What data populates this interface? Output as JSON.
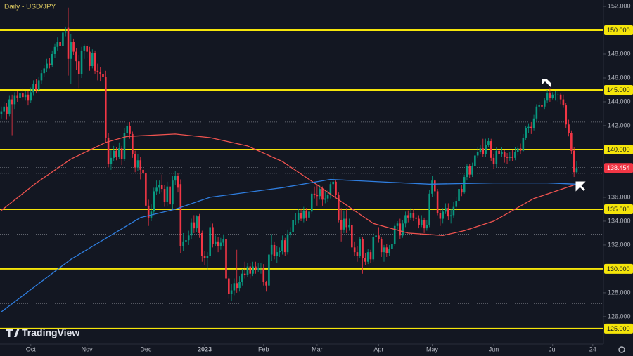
{
  "chart_data": {
    "type": "candlestick",
    "title": "Daily - USD/JPY",
    "watermark": "TradingView",
    "xlim": [
      -0.5,
      225
    ],
    "ylim": [
      123.7,
      152.53
    ],
    "xticks": [
      {
        "value": 11,
        "label": "Oct"
      },
      {
        "value": 32,
        "label": "Nov"
      },
      {
        "value": 54,
        "label": "Dec"
      },
      {
        "value": 76,
        "label": "2023"
      },
      {
        "value": 98,
        "label": "Feb"
      },
      {
        "value": 118,
        "label": "Mar"
      },
      {
        "value": 141,
        "label": "Apr"
      },
      {
        "value": 161,
        "label": "May"
      },
      {
        "value": 184,
        "label": "Jun"
      },
      {
        "value": 206,
        "label": "Jul"
      },
      {
        "value": 221,
        "label": "24"
      }
    ],
    "yticks": [
      {
        "value": 126,
        "label": "126.000"
      },
      {
        "value": 128,
        "label": "128.000"
      },
      {
        "value": 132,
        "label": "132.000"
      },
      {
        "value": 134,
        "label": "134.000"
      },
      {
        "value": 136,
        "label": "136.000"
      },
      {
        "value": 142,
        "label": "142.000"
      },
      {
        "value": 144,
        "label": "144.000"
      },
      {
        "value": 146,
        "label": "146.000"
      },
      {
        "value": 148,
        "label": "148.000"
      },
      {
        "value": 152,
        "label": "152.000"
      }
    ],
    "levels": [
      {
        "value": 150,
        "label": "150.000"
      },
      {
        "value": 145,
        "label": "145.000"
      },
      {
        "value": 140,
        "label": "140.000"
      },
      {
        "value": 135,
        "label": "135.000"
      },
      {
        "value": 130,
        "label": "130.000"
      },
      {
        "value": 125,
        "label": "125.000"
      }
    ],
    "level_color": "#f5e50a",
    "dotted_levels": [
      147.9,
      146.9,
      142.3,
      138.5,
      138.0,
      132.9,
      131.5,
      127.1
    ],
    "up_color": "#089981",
    "down_color": "#f23645",
    "ohlc": [
      [
        143.0,
        143.6,
        142.6,
        143.2
      ],
      [
        143.2,
        144.0,
        142.9,
        143.6
      ],
      [
        143.6,
        143.9,
        142.5,
        143.0
      ],
      [
        143.0,
        144.5,
        142.8,
        144.2
      ],
      [
        144.2,
        144.6,
        141.2,
        143.8
      ],
      [
        143.8,
        144.8,
        143.4,
        144.5
      ],
      [
        144.5,
        144.9,
        144.0,
        144.3
      ],
      [
        144.3,
        145.0,
        144.0,
        144.7
      ],
      [
        144.7,
        145.1,
        144.1,
        144.4
      ],
      [
        144.4,
        144.9,
        144.1,
        144.6
      ],
      [
        144.6,
        144.9,
        143.7,
        144.1
      ],
      [
        144.1,
        145.2,
        143.9,
        144.8
      ],
      [
        144.8,
        145.8,
        144.5,
        145.5
      ],
      [
        145.5,
        145.9,
        144.7,
        145.0
      ],
      [
        145.0,
        146.1,
        144.8,
        145.8
      ],
      [
        145.8,
        146.7,
        145.5,
        146.4
      ],
      [
        146.4,
        147.1,
        146.1,
        146.8
      ],
      [
        146.8,
        147.6,
        146.5,
        147.2
      ],
      [
        147.2,
        147.7,
        146.8,
        147.1
      ],
      [
        147.1,
        148.3,
        146.9,
        148.0
      ],
      [
        148.0,
        148.9,
        147.7,
        148.6
      ],
      [
        148.6,
        149.4,
        148.3,
        149.0
      ],
      [
        149.0,
        149.3,
        148.2,
        148.7
      ],
      [
        148.7,
        150.1,
        148.5,
        149.8
      ],
      [
        149.8,
        150.3,
        149.5,
        149.9
      ],
      [
        150.2,
        151.9,
        146.2,
        147.6
      ],
      [
        147.6,
        149.7,
        145.5,
        149.0
      ],
      [
        149.0,
        149.3,
        147.9,
        148.2
      ],
      [
        148.2,
        148.5,
        146.7,
        147.4
      ],
      [
        147.4,
        147.9,
        145.1,
        146.3
      ],
      [
        146.3,
        148.6,
        146.0,
        148.3
      ],
      [
        148.3,
        148.8,
        147.6,
        148.7
      ],
      [
        148.7,
        148.9,
        147.7,
        148.2
      ],
      [
        148.2,
        148.6,
        146.6,
        147.0
      ],
      [
        147.0,
        148.4,
        146.8,
        148.1
      ],
      [
        148.1,
        148.3,
        146.3,
        146.6
      ],
      [
        146.6,
        147.2,
        145.8,
        146.5
      ],
      [
        146.5,
        146.9,
        145.7,
        146.3
      ],
      [
        146.3,
        146.8,
        145.4,
        146.1
      ],
      [
        146.1,
        146.6,
        140.6,
        141.0
      ],
      [
        141.0,
        141.4,
        138.5,
        138.8
      ],
      [
        138.8,
        140.0,
        138.3,
        139.3
      ],
      [
        139.3,
        140.3,
        139.0,
        139.9
      ],
      [
        139.9,
        140.2,
        139.1,
        139.4
      ],
      [
        139.4,
        140.6,
        139.2,
        140.1
      ],
      [
        140.1,
        140.3,
        138.7,
        139.2
      ],
      [
        139.2,
        141.8,
        139.0,
        141.4
      ],
      [
        141.4,
        142.3,
        141.0,
        142.0
      ],
      [
        142.0,
        142.3,
        140.9,
        141.3
      ],
      [
        141.3,
        141.5,
        139.3,
        139.6
      ],
      [
        139.6,
        139.9,
        138.1,
        138.5
      ],
      [
        138.5,
        139.6,
        138.2,
        139.1
      ],
      [
        139.1,
        139.4,
        137.5,
        138.3
      ],
      [
        138.3,
        138.9,
        137.7,
        138.0
      ],
      [
        138.0,
        138.2,
        135.0,
        135.3
      ],
      [
        135.3,
        135.8,
        133.6,
        134.3
      ],
      [
        134.3,
        135.4,
        134.0,
        134.8
      ],
      [
        134.8,
        136.8,
        134.5,
        136.5
      ],
      [
        136.5,
        137.4,
        136.2,
        136.8
      ],
      [
        136.8,
        137.4,
        136.3,
        137.0
      ],
      [
        137.0,
        137.9,
        136.4,
        136.7
      ],
      [
        136.7,
        137.0,
        135.2,
        135.6
      ],
      [
        135.6,
        137.3,
        135.3,
        136.9
      ],
      [
        136.9,
        137.1,
        134.8,
        135.4
      ],
      [
        135.4,
        137.8,
        135.0,
        137.4
      ],
      [
        137.4,
        138.2,
        137.0,
        137.8
      ],
      [
        137.8,
        138.0,
        136.4,
        136.8
      ],
      [
        137.1,
        137.5,
        131.3,
        131.9
      ],
      [
        131.9,
        133.0,
        131.5,
        132.3
      ],
      [
        132.3,
        132.8,
        131.8,
        132.4
      ],
      [
        132.4,
        133.2,
        132.0,
        132.8
      ],
      [
        132.8,
        134.2,
        132.5,
        133.9
      ],
      [
        133.9,
        134.5,
        133.0,
        133.4
      ],
      [
        133.4,
        134.5,
        133.1,
        134.4
      ],
      [
        134.4,
        134.6,
        132.6,
        133.0
      ],
      [
        133.0,
        133.2,
        130.6,
        131.1
      ],
      [
        131.1,
        131.5,
        130.3,
        130.9
      ],
      [
        130.9,
        131.4,
        129.9,
        131.1
      ],
      [
        131.1,
        134.0,
        130.9,
        133.5
      ],
      [
        133.5,
        133.8,
        131.8,
        132.1
      ],
      [
        132.1,
        132.8,
        131.9,
        132.3
      ],
      [
        132.3,
        132.7,
        131.4,
        131.9
      ],
      [
        131.9,
        132.6,
        131.6,
        132.2
      ],
      [
        132.2,
        132.9,
        131.9,
        132.5
      ],
      [
        132.5,
        132.9,
        128.9,
        129.2
      ],
      [
        129.2,
        129.4,
        127.5,
        127.9
      ],
      [
        127.9,
        128.7,
        127.3,
        128.2
      ],
      [
        128.2,
        129.2,
        127.8,
        128.8
      ],
      [
        128.8,
        131.6,
        128.0,
        128.4
      ],
      [
        128.4,
        129.4,
        128.1,
        128.9
      ],
      [
        128.9,
        130.0,
        128.6,
        129.6
      ],
      [
        129.6,
        130.6,
        129.2,
        129.5
      ],
      [
        129.5,
        130.5,
        129.3,
        130.2
      ],
      [
        130.2,
        130.5,
        129.2,
        129.6
      ],
      [
        129.6,
        130.6,
        129.4,
        130.2
      ],
      [
        130.2,
        130.6,
        129.6,
        129.9
      ],
      [
        129.9,
        130.5,
        129.7,
        130.1
      ],
      [
        130.1,
        130.5,
        129.6,
        130.1
      ],
      [
        130.1,
        130.4,
        128.6,
        128.9
      ],
      [
        128.9,
        129.0,
        128.1,
        128.6
      ],
      [
        128.6,
        131.5,
        128.3,
        131.2
      ],
      [
        131.2,
        132.9,
        130.7,
        132.0
      ],
      [
        132.0,
        132.3,
        130.8,
        131.1
      ],
      [
        131.1,
        131.9,
        130.5,
        131.4
      ],
      [
        131.4,
        131.8,
        131.0,
        131.5
      ],
      [
        131.5,
        132.8,
        131.2,
        132.4
      ],
      [
        132.4,
        132.6,
        131.1,
        131.4
      ],
      [
        131.4,
        133.3,
        131.2,
        132.9
      ],
      [
        132.9,
        133.5,
        132.6,
        133.1
      ],
      [
        133.1,
        134.4,
        132.8,
        134.1
      ],
      [
        134.1,
        134.7,
        133.7,
        134.1
      ],
      [
        134.1,
        135.0,
        133.8,
        134.7
      ],
      [
        134.7,
        135.0,
        134.0,
        134.2
      ],
      [
        134.2,
        135.2,
        133.9,
        134.9
      ],
      [
        134.9,
        135.1,
        134.0,
        134.3
      ],
      [
        134.3,
        135.1,
        134.0,
        134.8
      ],
      [
        134.8,
        136.5,
        134.6,
        136.3
      ],
      [
        136.3,
        136.9,
        135.9,
        136.2
      ],
      [
        136.2,
        137.1,
        135.3,
        136.1
      ],
      [
        136.1,
        137.0,
        135.8,
        136.7
      ],
      [
        136.7,
        136.9,
        135.3,
        135.8
      ],
      [
        135.8,
        136.5,
        135.5,
        135.9
      ],
      [
        135.9,
        136.6,
        135.6,
        136.2
      ],
      [
        136.2,
        137.3,
        135.9,
        137.1
      ],
      [
        137.1,
        137.9,
        136.7,
        137.3
      ],
      [
        137.3,
        137.4,
        136.0,
        136.2
      ],
      [
        136.2,
        136.4,
        133.9,
        134.1
      ],
      [
        134.1,
        135.1,
        132.3,
        133.3
      ],
      [
        133.3,
        134.9,
        133.0,
        134.2
      ],
      [
        134.2,
        135.1,
        133.0,
        133.5
      ],
      [
        133.5,
        134.2,
        133.2,
        133.7
      ],
      [
        133.7,
        133.9,
        131.6,
        131.8
      ],
      [
        131.8,
        132.3,
        131.1,
        131.4
      ],
      [
        131.4,
        131.9,
        130.6,
        131.1
      ],
      [
        131.1,
        132.7,
        130.9,
        132.5
      ],
      [
        132.5,
        132.7,
        129.6,
        130.9
      ],
      [
        130.9,
        131.3,
        130.3,
        130.6
      ],
      [
        130.6,
        131.7,
        130.4,
        131.4
      ],
      [
        131.4,
        131.6,
        130.5,
        130.8
      ],
      [
        130.8,
        133.0,
        130.6,
        132.7
      ],
      [
        132.7,
        133.2,
        132.3,
        132.8
      ],
      [
        132.8,
        133.5,
        132.2,
        132.5
      ],
      [
        132.5,
        132.7,
        131.0,
        131.4
      ],
      [
        131.4,
        132.0,
        130.6,
        131.8
      ],
      [
        131.8,
        132.1,
        131.0,
        131.3
      ],
      [
        131.3,
        132.0,
        131.1,
        131.7
      ],
      [
        131.7,
        132.4,
        131.5,
        132.1
      ],
      [
        132.1,
        133.8,
        131.9,
        133.6
      ],
      [
        133.6,
        134.0,
        133.2,
        133.8
      ],
      [
        133.8,
        134.2,
        132.5,
        132.8
      ],
      [
        132.8,
        134.1,
        132.6,
        133.8
      ],
      [
        133.8,
        134.8,
        133.5,
        134.5
      ],
      [
        134.5,
        134.9,
        133.9,
        134.3
      ],
      [
        134.3,
        135.1,
        134.1,
        134.7
      ],
      [
        134.7,
        135.0,
        134.0,
        134.3
      ],
      [
        134.3,
        134.7,
        133.9,
        134.2
      ],
      [
        134.2,
        134.5,
        133.4,
        133.7
      ],
      [
        133.7,
        134.5,
        133.5,
        134.1
      ],
      [
        134.1,
        134.3,
        133.0,
        133.4
      ],
      [
        133.4,
        134.1,
        133.2,
        133.7
      ],
      [
        133.7,
        136.6,
        133.5,
        136.3
      ],
      [
        136.3,
        137.8,
        136.0,
        137.4
      ],
      [
        137.4,
        137.5,
        136.1,
        136.5
      ],
      [
        136.5,
        136.7,
        134.5,
        134.7
      ],
      [
        134.7,
        135.0,
        133.6,
        134.2
      ],
      [
        134.2,
        135.1,
        133.8,
        134.8
      ],
      [
        134.8,
        135.5,
        134.6,
        135.1
      ],
      [
        135.1,
        135.5,
        134.1,
        134.4
      ],
      [
        134.4,
        135.0,
        133.8,
        134.5
      ],
      [
        134.5,
        135.6,
        134.3,
        135.2
      ],
      [
        135.2,
        136.0,
        134.9,
        135.7
      ],
      [
        135.7,
        136.9,
        135.5,
        136.7
      ],
      [
        136.7,
        137.0,
        136.1,
        136.4
      ],
      [
        136.4,
        137.9,
        136.3,
        137.7
      ],
      [
        137.7,
        138.8,
        137.4,
        138.6
      ],
      [
        138.6,
        138.8,
        137.6,
        137.9
      ],
      [
        137.9,
        138.9,
        137.7,
        138.6
      ],
      [
        138.6,
        139.7,
        138.4,
        139.5
      ],
      [
        139.5,
        140.2,
        139.3,
        139.8
      ],
      [
        139.8,
        140.4,
        139.6,
        140.1
      ],
      [
        140.1,
        140.9,
        139.4,
        139.6
      ],
      [
        139.6,
        140.9,
        139.4,
        140.4
      ],
      [
        140.4,
        141.0,
        140.2,
        140.7
      ],
      [
        140.7,
        140.9,
        139.0,
        139.3
      ],
      [
        139.3,
        139.6,
        138.4,
        138.8
      ],
      [
        138.8,
        140.2,
        138.5,
        139.9
      ],
      [
        139.9,
        140.4,
        139.3,
        139.6
      ],
      [
        139.6,
        140.2,
        139.4,
        139.8
      ],
      [
        139.8,
        140.0,
        138.9,
        139.4
      ],
      [
        139.4,
        139.7,
        138.8,
        139.3
      ],
      [
        139.3,
        139.8,
        139.0,
        139.4
      ],
      [
        139.4,
        140.0,
        139.0,
        139.3
      ],
      [
        139.3,
        140.2,
        139.1,
        139.8
      ],
      [
        139.8,
        140.3,
        139.5,
        140.1
      ],
      [
        140.1,
        140.5,
        139.6,
        139.9
      ],
      [
        139.9,
        141.3,
        139.8,
        141.0
      ],
      [
        141.0,
        142.0,
        140.8,
        141.8
      ],
      [
        141.8,
        142.2,
        141.4,
        141.9
      ],
      [
        141.9,
        142.3,
        141.3,
        141.8
      ],
      [
        141.8,
        142.9,
        141.6,
        142.6
      ],
      [
        142.6,
        143.8,
        142.4,
        143.6
      ],
      [
        143.6,
        144.0,
        143.2,
        143.7
      ],
      [
        143.7,
        144.0,
        143.3,
        143.6
      ],
      [
        143.6,
        144.3,
        143.4,
        144.1
      ],
      [
        144.1,
        145.0,
        143.9,
        144.7
      ],
      [
        144.7,
        145.1,
        144.0,
        144.3
      ],
      [
        144.3,
        144.8,
        144.2,
        144.6
      ],
      [
        144.6,
        144.9,
        144.1,
        144.6
      ],
      [
        144.6,
        144.9,
        144.0,
        144.6
      ],
      [
        144.6,
        144.7,
        143.8,
        144.2
      ],
      [
        144.2,
        144.6,
        143.5,
        143.7
      ],
      [
        143.7,
        143.9,
        141.8,
        142.1
      ],
      [
        142.1,
        142.5,
        141.1,
        141.4
      ],
      [
        141.4,
        141.6,
        139.6,
        139.9
      ],
      [
        139.9,
        140.2,
        137.7,
        138.1
      ],
      [
        138.1,
        139.0,
        138.0,
        138.454
      ]
    ],
    "series": [
      {
        "color": "#f0534f",
        "x": [
          0,
          13,
          26,
          39,
          47,
          65,
          78,
          92,
          105,
          115,
          126,
          139,
          152,
          165,
          173,
          184,
          199,
          215
        ],
        "values": [
          134.9,
          137.2,
          139.2,
          140.6,
          141.1,
          141.3,
          141.0,
          140.3,
          139.0,
          137.5,
          135.8,
          133.8,
          133.0,
          132.8,
          133.2,
          134.0,
          135.9,
          137.1
        ]
      },
      {
        "color": "#2f7ee0",
        "x": [
          0,
          26,
          52,
          65,
          78,
          105,
          123,
          141,
          160,
          184,
          204,
          215
        ],
        "values": [
          126.4,
          130.8,
          134.3,
          135.0,
          136.0,
          136.8,
          137.5,
          137.3,
          137.1,
          137.2,
          137.2,
          137.1
        ]
      }
    ]
  }
}
